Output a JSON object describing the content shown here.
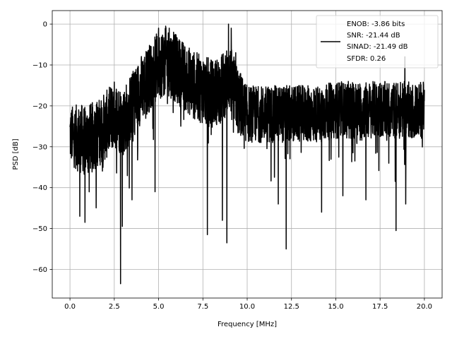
{
  "chart_data": {
    "type": "line",
    "title": "",
    "xlabel": "Frequency [MHz]",
    "ylabel": "PSD [dB]",
    "xlim": [
      -1,
      21
    ],
    "ylim": [
      -67,
      3.3
    ],
    "grid": true,
    "legend_placement": "top-right",
    "x_ticks": [
      0.0,
      2.5,
      5.0,
      7.5,
      10.0,
      12.5,
      15.0,
      17.5,
      20.0
    ],
    "x_tick_labels": [
      "0.0",
      "2.5",
      "5.0",
      "7.5",
      "10.0",
      "12.5",
      "15.0",
      "17.5",
      "20.0"
    ],
    "y_ticks": [
      0,
      -10,
      -20,
      -30,
      -40,
      -50,
      -60
    ],
    "y_tick_labels": [
      "0",
      "−10",
      "−20",
      "−30",
      "−40",
      "−50",
      "−60"
    ],
    "legend_entries": [
      "ENOB: -3.86 bits",
      "SNR: -21.44 dB",
      "SINAD: -21.49 dB",
      "SFDR: 0.26"
    ],
    "line_color": "#000000",
    "series": [
      {
        "x_range": [
          0,
          20
        ],
        "envelope_x": [
          0,
          0.5,
          1.0,
          1.5,
          2.0,
          2.5,
          3.0,
          3.5,
          4.0,
          4.5,
          5.0,
          5.5,
          6.0,
          6.5,
          7.0,
          7.5,
          8.0,
          8.5,
          9.0,
          9.5,
          10.0,
          11.0,
          12.0,
          13.0,
          14.0,
          15.0,
          16.0,
          17.0,
          18.0,
          19.0,
          20.0
        ],
        "envelope_center": [
          -27,
          -28,
          -28,
          -27,
          -25,
          -22,
          -24,
          -20,
          -16,
          -13,
          -10,
          -9,
          -11,
          -13,
          -15,
          -16,
          -17,
          -16,
          -13,
          -19,
          -22,
          -22,
          -22,
          -22,
          -22,
          -21,
          -21,
          -21,
          -21,
          -21,
          -21
        ],
        "envelope_spread": [
          5,
          6,
          6,
          6,
          6,
          6,
          6,
          6,
          6,
          6,
          6,
          6,
          6,
          6,
          6,
          6,
          6,
          6,
          6,
          6,
          5,
          5,
          5,
          5,
          5,
          5,
          5,
          5,
          5,
          5,
          5
        ],
        "dips": [
          {
            "x": 2.85,
            "y": -63.5
          },
          {
            "x": 2.95,
            "y": -49.5
          },
          {
            "x": 0.55,
            "y": -47
          },
          {
            "x": 0.85,
            "y": -48.5
          },
          {
            "x": 3.5,
            "y": -43
          },
          {
            "x": 4.8,
            "y": -41
          },
          {
            "x": 7.75,
            "y": -51.5
          },
          {
            "x": 8.6,
            "y": -48
          },
          {
            "x": 8.85,
            "y": -53.5
          },
          {
            "x": 12.2,
            "y": -55
          },
          {
            "x": 11.75,
            "y": -44
          },
          {
            "x": 14.2,
            "y": -46
          },
          {
            "x": 15.4,
            "y": -42
          },
          {
            "x": 16.7,
            "y": -43
          },
          {
            "x": 18.4,
            "y": -50.5
          },
          {
            "x": 18.95,
            "y": -44
          }
        ],
        "peaks": [
          {
            "x": 5.0,
            "y": -1
          },
          {
            "x": 5.4,
            "y": -0.5
          },
          {
            "x": 5.6,
            "y": -1
          },
          {
            "x": 5.85,
            "y": -2
          },
          {
            "x": 8.95,
            "y": 0
          },
          {
            "x": 9.1,
            "y": -1
          },
          {
            "x": 9.35,
            "y": -7
          },
          {
            "x": 7.0,
            "y": -7
          },
          {
            "x": 18.9,
            "y": -8
          }
        ]
      }
    ]
  }
}
